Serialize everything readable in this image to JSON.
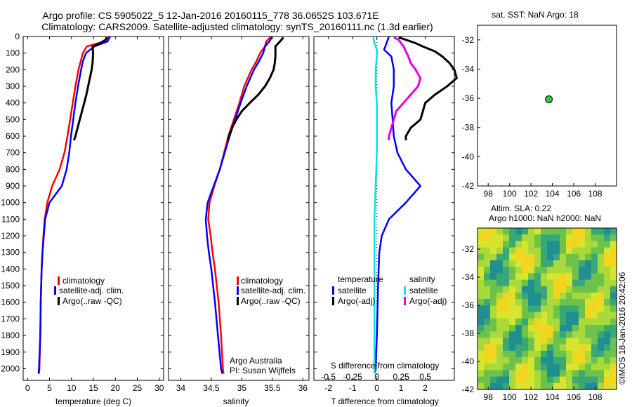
{
  "title_line1": "Argo profile: CS 5905022_5 12-Jan-2016 20160115_778 36.0652S 103.671E",
  "title_line2": "Climatology: CARS2009. Satellite-adjusted climatology: synTS_20160111.nc (1.3d earlier)",
  "credit": "Argo Australia",
  "pi": "PI: Susan Wijffels",
  "watermark": "©IMOS 18-Jan-2016 20:42:06",
  "colors": {
    "climatology": "#ff0000",
    "satellite": "#0000ff",
    "argo": "#000000",
    "s_satellite": "#00e5e5",
    "s_argo": "#e600e6"
  },
  "chart_data": [
    {
      "type": "line",
      "xlabel": "temperature (deg C)",
      "ylabel": "",
      "xlim": [
        -1,
        31
      ],
      "ylim": [
        2070,
        0
      ],
      "xticks": [
        0,
        5,
        10,
        15,
        20,
        25,
        30
      ],
      "yticks": [
        0,
        100,
        200,
        300,
        400,
        500,
        600,
        700,
        800,
        900,
        1000,
        1100,
        1200,
        1300,
        1400,
        1500,
        1600,
        1700,
        1800,
        1900,
        2000
      ],
      "legend": [
        "climatology",
        "satellite-adj. clim.",
        "Argo(..raw -QC)"
      ],
      "series": [
        {
          "name": "climatology",
          "depth": [
            0,
            30,
            60,
            100,
            150,
            200,
            300,
            400,
            500,
            600,
            700,
            800,
            900,
            1000,
            1100,
            1200,
            1300,
            1400,
            1600,
            1800,
            2000,
            2030
          ],
          "values": [
            18.6,
            17.5,
            13.5,
            12.6,
            12.1,
            11.6,
            10.9,
            10.3,
            9.7,
            9.1,
            8.4,
            7.3,
            5.6,
            4.5,
            3.9,
            3.6,
            3.4,
            3.2,
            3.0,
            2.9,
            2.7,
            2.6
          ]
        },
        {
          "name": "satellite-adj. clim.",
          "depth": [
            0,
            30,
            60,
            100,
            150,
            200,
            300,
            400,
            500,
            600,
            700,
            800,
            900,
            1000,
            1100,
            1200,
            1300,
            1400,
            1600,
            1800,
            2000,
            2030
          ],
          "values": [
            18.8,
            18.2,
            15.2,
            13.3,
            12.6,
            12.2,
            11.5,
            10.9,
            10.4,
            9.9,
            9.5,
            8.9,
            7.8,
            5.0,
            4.0,
            3.7,
            3.4,
            3.2,
            3.0,
            2.9,
            2.6,
            2.5
          ]
        },
        {
          "name": "Argo(..raw -QC)",
          "depth": [
            5,
            20,
            40,
            60,
            90,
            120,
            160,
            200,
            250,
            300,
            350,
            400,
            450,
            500,
            550,
            600,
            625
          ],
          "values": [
            18.0,
            17.8,
            16.5,
            14.8,
            14.9,
            14.9,
            14.8,
            14.6,
            14.2,
            13.8,
            13.4,
            12.9,
            12.4,
            11.9,
            11.4,
            10.9,
            10.6
          ]
        }
      ]
    },
    {
      "type": "line",
      "xlabel": "salinity",
      "ylabel": "",
      "xlim": [
        33.8,
        36.1
      ],
      "ylim": [
        2070,
        0
      ],
      "xticks": [
        34,
        34.5,
        35,
        35.5,
        36
      ],
      "legend": [
        "climatology",
        "satellite-adj. clim.",
        "Argo(..raw -QC)"
      ],
      "series": [
        {
          "name": "climatology",
          "depth": [
            0,
            30,
            60,
            100,
            150,
            200,
            300,
            400,
            500,
            600,
            700,
            800,
            900,
            1000,
            1100,
            1200,
            1300,
            1400,
            1600,
            1800,
            2000,
            2030
          ],
          "values": [
            35.48,
            35.4,
            35.38,
            35.3,
            35.24,
            35.16,
            35.04,
            34.96,
            34.87,
            34.78,
            34.71,
            34.64,
            34.55,
            34.47,
            34.45,
            34.49,
            34.52,
            34.56,
            34.62,
            34.66,
            34.69,
            34.7
          ]
        },
        {
          "name": "satellite-adj. clim.",
          "depth": [
            0,
            30,
            60,
            100,
            150,
            200,
            300,
            400,
            500,
            600,
            700,
            800,
            900,
            1000,
            1100,
            1200,
            1300,
            1400,
            1600,
            1800,
            2000,
            2030
          ],
          "values": [
            35.5,
            35.45,
            35.38,
            35.35,
            35.28,
            35.2,
            35.08,
            34.98,
            34.89,
            34.8,
            34.72,
            34.64,
            34.54,
            34.44,
            34.41,
            34.43,
            34.46,
            34.5,
            34.56,
            34.61,
            34.66,
            34.68
          ]
        },
        {
          "name": "Argo(..raw -QC)",
          "depth": [
            5,
            20,
            40,
            60,
            90,
            120,
            160,
            200,
            250,
            300,
            350,
            400,
            450,
            500,
            550,
            600,
            625
          ],
          "values": [
            35.68,
            35.65,
            35.6,
            35.55,
            35.55,
            35.55,
            35.54,
            35.52,
            35.46,
            35.38,
            35.27,
            35.13,
            35.0,
            34.91,
            34.84,
            34.79,
            34.77
          ]
        }
      ]
    },
    {
      "type": "line",
      "xlabel": "T difference from climatology",
      "ylabel": "",
      "xlim": [
        -2.6,
        3.2
      ],
      "ylim": [
        2070,
        0
      ],
      "xticks": [
        -2,
        -1,
        0,
        1,
        2
      ],
      "top_label": "S difference from climatology",
      "top_xticks": [
        "-0.5",
        "-0.25",
        "0",
        "0.25",
        "0.5"
      ],
      "legend_title_left": "temperature",
      "legend_title_right": "salinity",
      "legend": [
        "satellite",
        "Argo(-adj)",
        "satellite",
        "Argo(-adj)"
      ],
      "series": [
        {
          "name": "satellite",
          "depth": [
            0,
            40,
            80,
            120,
            200,
            300,
            400,
            500,
            600,
            700,
            800,
            900,
            1000,
            1100,
            1200,
            1300,
            1500,
            1800,
            2000,
            2030
          ],
          "values": [
            0.5,
            0.4,
            0.3,
            0.6,
            0.7,
            0.7,
            0.6,
            0.65,
            0.7,
            0.85,
            1.2,
            1.8,
            1.2,
            0.5,
            0.2,
            0.1,
            0.05,
            0.0,
            -0.05,
            -0.1
          ]
        },
        {
          "name": "Argo(-adj)",
          "depth": [
            5,
            20,
            40,
            60,
            90,
            120,
            160,
            200,
            250,
            300,
            350,
            400,
            450,
            500,
            550,
            600,
            625
          ],
          "values": [
            0.9,
            1.2,
            1.6,
            1.9,
            2.4,
            2.7,
            3.0,
            3.2,
            3.3,
            2.9,
            2.4,
            2.0,
            1.9,
            1.8,
            1.4,
            1.2,
            1.2
          ]
        },
        {
          "name": "S satellite",
          "depth": [
            0,
            40,
            80,
            120,
            200,
            300,
            400,
            500,
            700,
            900,
            1100,
            1300,
            1600,
            1900,
            2030
          ],
          "values": [
            -0.15,
            -0.1,
            0.0,
            0.0,
            -0.05,
            -0.05,
            0.0,
            0.0,
            0.0,
            -0.05,
            -0.1,
            -0.1,
            -0.1,
            -0.1,
            -0.1
          ]
        },
        {
          "name": "S Argo(-adj)",
          "depth": [
            5,
            20,
            40,
            60,
            90,
            120,
            160,
            200,
            250,
            300,
            350,
            400,
            450,
            500,
            550,
            600,
            625
          ],
          "values": [
            0.7,
            0.9,
            1.0,
            1.1,
            1.2,
            1.3,
            1.4,
            1.6,
            1.8,
            1.7,
            1.4,
            1.1,
            0.8,
            0.7,
            0.6,
            0.5,
            0.5
          ]
        }
      ]
    },
    {
      "type": "scatter",
      "title": "sat. SST: NaN Argo: 18",
      "xlim": [
        97,
        110
      ],
      "ylim": [
        -42,
        -31
      ],
      "xticks": [
        98,
        100,
        102,
        104,
        106,
        108
      ],
      "yticks": [
        -32,
        -34,
        -36,
        -38,
        -40,
        -42
      ],
      "points": [
        {
          "x": 103.67,
          "y": -36.07
        }
      ]
    },
    {
      "type": "heatmap",
      "title_line1": "Altim. SLA: 0.22",
      "title_line2": "Argo h1000: NaN h2000: NaN",
      "xlim": [
        97,
        110
      ],
      "ylim": [
        -42,
        -30.5
      ],
      "xticks": [
        98,
        100,
        102,
        104,
        106,
        108
      ],
      "yticks": [
        -32,
        -34,
        -36,
        -38,
        -40,
        -42
      ]
    }
  ]
}
